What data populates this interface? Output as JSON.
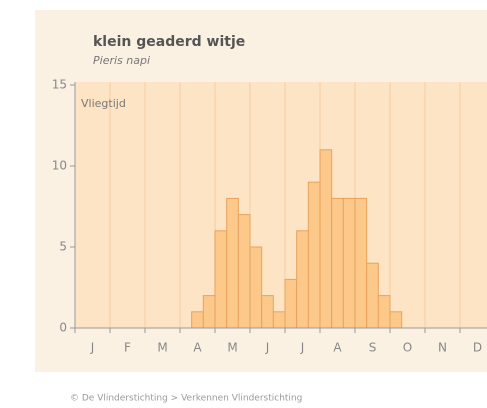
{
  "chart_data": {
    "type": "bar",
    "title": "klein geaderd witje",
    "subtitle": "Pieris napi",
    "annotation": "Vliegtijd",
    "footer": "© De Vlinderstichting > Verkennen Vlinderstichting",
    "categories": [
      null,
      "J",
      null,
      null,
      "F",
      null,
      null,
      "M",
      null,
      null,
      "A",
      null,
      null,
      "M",
      null,
      null,
      "J",
      null,
      null,
      "J",
      null,
      null,
      "A",
      null,
      null,
      "S",
      null,
      null,
      "O",
      null,
      null,
      "N",
      null,
      null,
      "D",
      null
    ],
    "values": [
      0,
      0,
      0,
      0,
      0,
      0,
      0,
      0,
      0,
      0,
      1,
      2,
      6,
      8,
      7,
      5,
      2,
      1,
      3,
      6,
      9,
      11,
      8,
      8,
      8,
      4,
      2,
      1,
      0,
      0,
      0,
      0,
      0,
      0,
      0,
      0
    ],
    "color": "#fcc98a",
    "ylim": [
      0,
      15
    ],
    "yticks": [
      0,
      5,
      10,
      15
    ],
    "grid": true
  }
}
